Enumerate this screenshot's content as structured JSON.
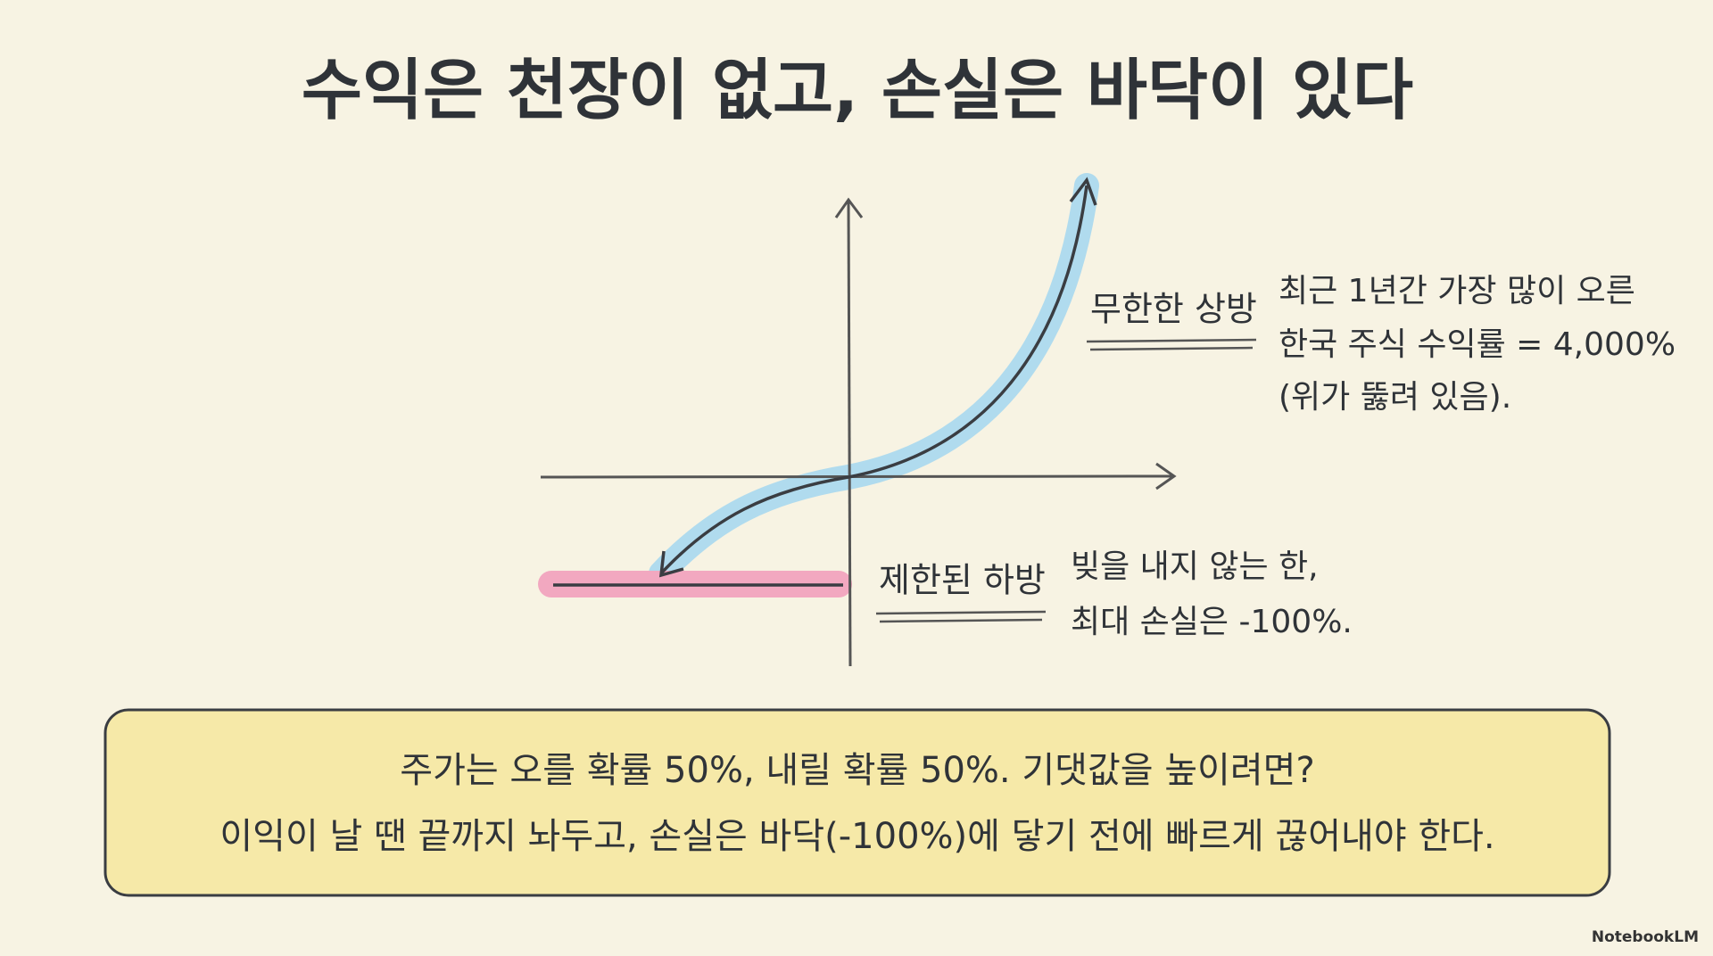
{
  "header": {
    "title": "수익은 천장이 없고, 손실은 바닥이 있다"
  },
  "diagram": {
    "upside": {
      "label": "무한한 상방",
      "note": [
        "최근 1년간 가장 많이 오른",
        "한국 주식 수익률 = 4,000%",
        "(위가 뚫려 있음)."
      ]
    },
    "downside": {
      "label": "제한된 하방",
      "note": [
        "빚을 내지 않는 한,",
        "최대 손실은 -100%."
      ]
    }
  },
  "summary": {
    "lines": [
      "주가는 오를 확률 50%, 내릴 확률 50%. 기댓값을 높이려면?",
      "이익이 날 땐 끝까지 놔두고, 손실은 바닥(-100%)에 닿기 전에 빠르게 끊어내야 한다."
    ]
  },
  "footer": {
    "watermark": "NotebookLM"
  }
}
